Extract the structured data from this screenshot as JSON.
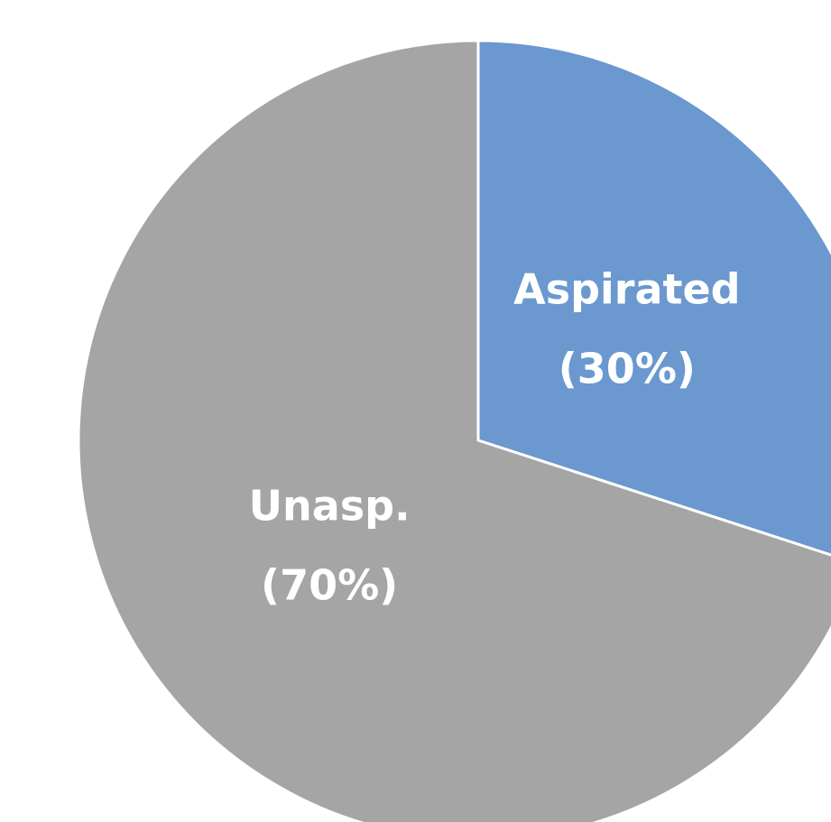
{
  "chart_data": {
    "type": "pie",
    "categories": [
      "Aspirated",
      "Unasp."
    ],
    "values": [
      30,
      70
    ],
    "value_labels": [
      "(30%)",
      "(70%)"
    ],
    "colors": [
      "#6a98cf",
      "#a5a5a5"
    ]
  }
}
